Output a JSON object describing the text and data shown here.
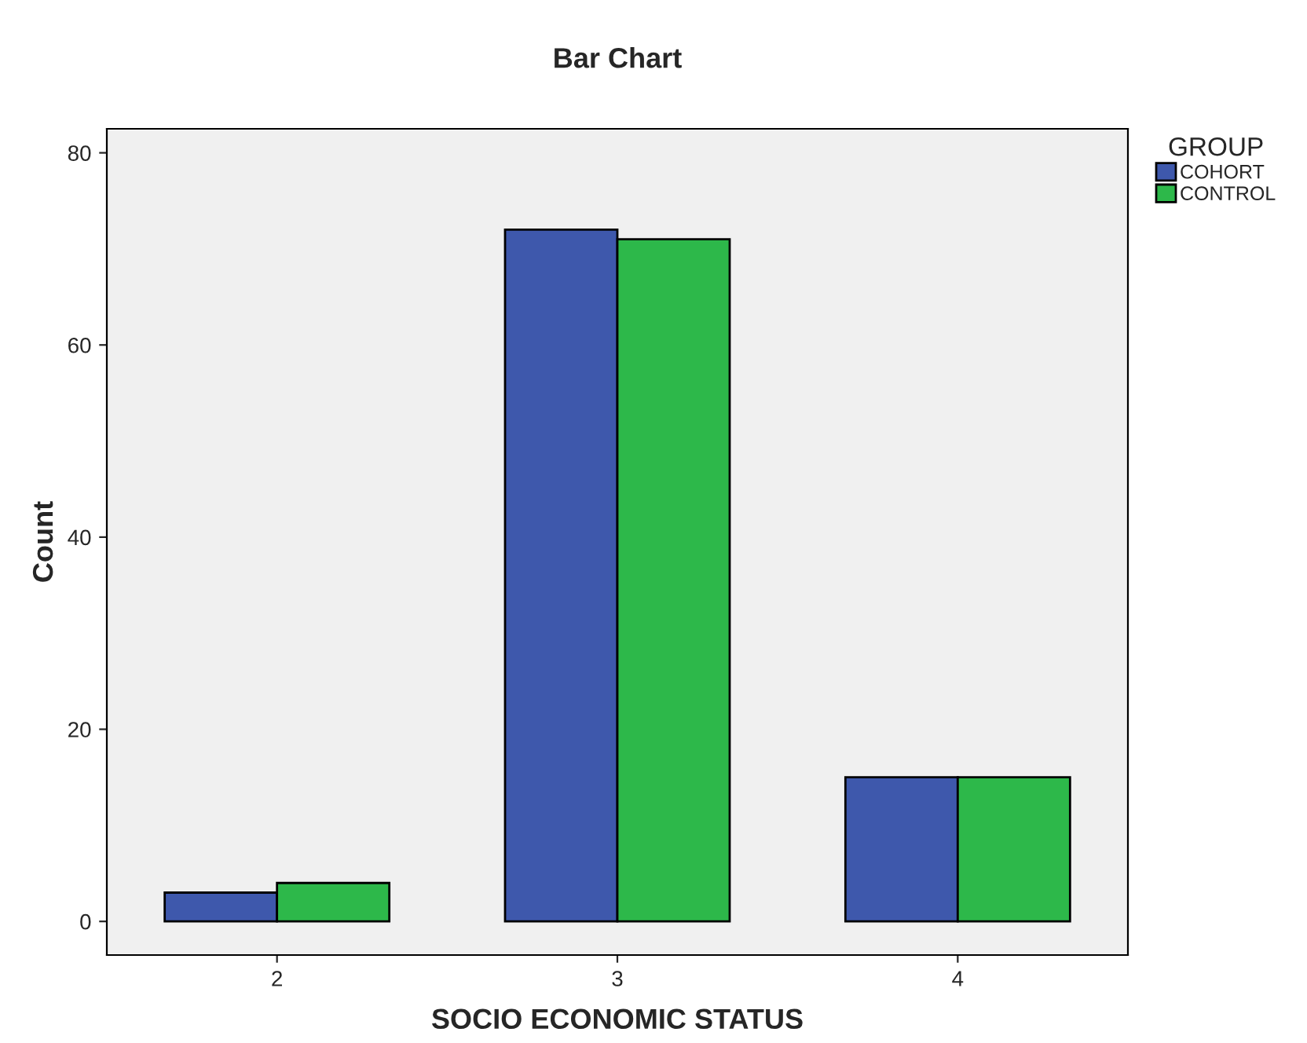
{
  "chart_data": {
    "type": "bar",
    "title": "Bar Chart",
    "xlabel": "SOCIO ECONOMIC STATUS",
    "ylabel": "Count",
    "legend_title": "GROUP",
    "categories": [
      "2",
      "3",
      "4"
    ],
    "series": [
      {
        "name": "COHORT",
        "color": "#3e58ac",
        "values": [
          3,
          72,
          15
        ]
      },
      {
        "name": "CONTROL",
        "color": "#2db84a",
        "values": [
          4,
          71,
          15
        ]
      }
    ],
    "ylim": [
      -3.5,
      82.5
    ],
    "yticks": [
      0,
      20,
      40,
      60,
      80
    ],
    "grid": false,
    "legend": "top right"
  }
}
